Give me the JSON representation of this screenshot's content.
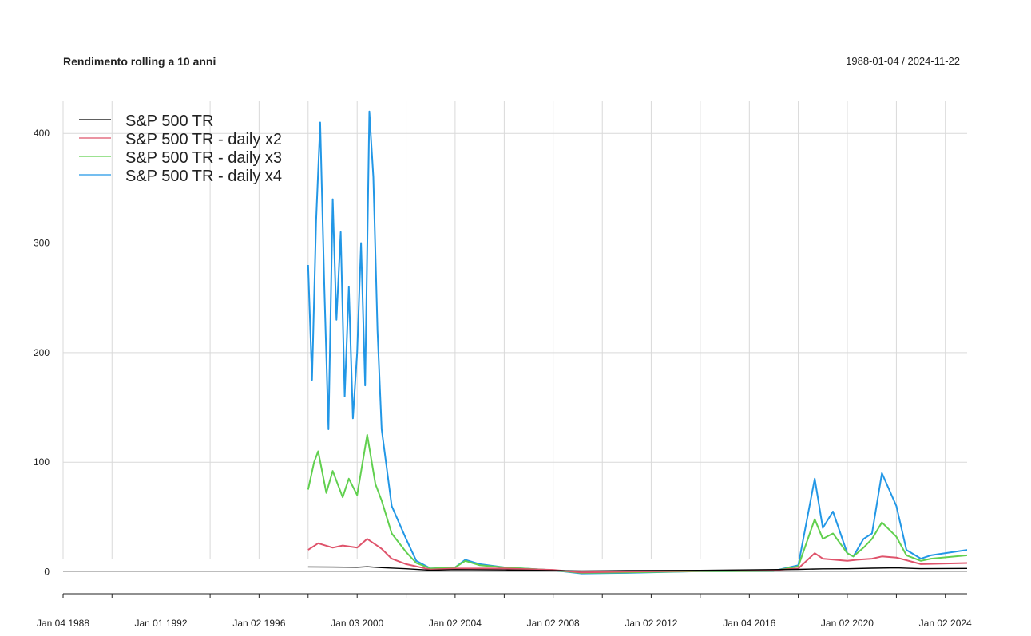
{
  "chart_data": {
    "type": "line",
    "title": "Rendimento rolling a 10 anni",
    "date_range": "1988-01-04 / 2024-11-22",
    "x_range": [
      "1988-01-04",
      "2024-11-22"
    ],
    "ylim": [
      -20,
      430
    ],
    "y_ticks": [
      0,
      100,
      200,
      300,
      400
    ],
    "y_tick_labels": [
      "0",
      "100",
      "200",
      "300",
      "400"
    ],
    "x_ticks": [
      "1988-01-04",
      "1990-01-02",
      "1992-01-01",
      "1994-01-03",
      "1996-01-02",
      "1998-01-02",
      "2000-01-03",
      "2002-01-02",
      "2004-01-02",
      "2006-01-03",
      "2008-01-02",
      "2010-01-04",
      "2012-01-02",
      "2014-01-02",
      "2016-01-04",
      "2018-01-02",
      "2020-01-02",
      "2022-01-03",
      "2024-01-02"
    ],
    "x_tick_labels": [
      "Jan 04 1988",
      "Jan 01 1992",
      "Jan 02 1996",
      "Jan 03 2000",
      "Jan 02 2004",
      "Jan 02 2008",
      "Jan 02 2012",
      "Jan 04 2016",
      "Jan 02 2020",
      "Jan 02 2024"
    ],
    "x_tick_label_dates": [
      "1988-01-04",
      "1992-01-01",
      "1996-01-02",
      "2000-01-03",
      "2004-01-02",
      "2008-01-02",
      "2012-01-02",
      "2016-01-04",
      "2020-01-02",
      "2024-01-02"
    ],
    "grid": true,
    "legend": "top-left",
    "series": [
      {
        "name": "S&P 500 TR",
        "color": "#000000",
        "x": [
          "1998-01-02",
          "1999-01-04",
          "2000-01-03",
          "2000-06-01",
          "2001-01-02",
          "2002-01-02",
          "2003-01-02",
          "2004-01-02",
          "2006-01-03",
          "2008-01-02",
          "2009-03-02",
          "2011-01-03",
          "2014-01-02",
          "2018-01-02",
          "2019-01-02",
          "2020-01-02",
          "2021-01-04",
          "2022-01-03",
          "2023-01-03",
          "2024-11-22"
        ],
        "y": [
          4.5,
          4.3,
          4.2,
          4.6,
          3.8,
          2.8,
          1.4,
          2.0,
          1.7,
          1.2,
          0.8,
          1.1,
          1.3,
          2.2,
          2.7,
          2.8,
          3.3,
          3.6,
          2.9,
          3.1
        ]
      },
      {
        "name": "S&P 500 TR - daily x2",
        "color": "#df536b",
        "x": [
          "1998-01-02",
          "1998-06-01",
          "1999-01-04",
          "1999-06-01",
          "2000-01-03",
          "2000-06-01",
          "2001-01-02",
          "2001-06-01",
          "2002-01-02",
          "2003-01-02",
          "2004-01-02",
          "2005-01-03",
          "2006-01-03",
          "2008-01-02",
          "2009-03-02",
          "2011-01-03",
          "2014-01-02",
          "2017-01-03",
          "2018-01-02",
          "2018-09-04",
          "2019-01-02",
          "2020-01-02",
          "2020-06-01",
          "2021-01-04",
          "2021-06-01",
          "2022-01-03",
          "2023-01-03",
          "2024-11-22"
        ],
        "y": [
          20,
          26,
          22,
          24,
          22,
          30,
          21,
          12,
          7,
          2,
          3,
          3,
          3,
          1.8,
          -0.5,
          0.2,
          1.0,
          1.5,
          3,
          17,
          12,
          10,
          11,
          12,
          14,
          13,
          7,
          8
        ]
      },
      {
        "name": "S&P 500 TR - daily x3",
        "color": "#61d04f",
        "x": [
          "1998-01-02",
          "1998-04-01",
          "1998-06-01",
          "1998-10-01",
          "1999-01-04",
          "1999-06-01",
          "1999-09-01",
          "2000-01-03",
          "2000-06-01",
          "2000-10-02",
          "2001-01-02",
          "2001-06-01",
          "2002-01-02",
          "2002-06-03",
          "2003-01-02",
          "2004-01-02",
          "2004-06-01",
          "2005-01-03",
          "2006-01-03",
          "2008-01-02",
          "2009-03-02",
          "2011-01-03",
          "2014-01-02",
          "2017-01-03",
          "2018-01-02",
          "2018-09-04",
          "2019-01-02",
          "2019-06-03",
          "2020-01-02",
          "2020-04-01",
          "2020-09-01",
          "2021-01-04",
          "2021-06-01",
          "2022-01-03",
          "2022-06-01",
          "2023-01-03",
          "2023-06-01",
          "2024-11-22"
        ],
        "y": [
          75,
          100,
          110,
          72,
          92,
          68,
          85,
          70,
          125,
          80,
          65,
          35,
          18,
          8,
          3,
          4,
          10,
          6,
          4,
          1.5,
          -1.0,
          -0.5,
          0.5,
          1.0,
          5,
          48,
          30,
          35,
          17,
          14,
          22,
          30,
          45,
          32,
          15,
          10,
          12,
          15
        ]
      },
      {
        "name": "S&P 500 TR - daily x4",
        "color": "#2297e6",
        "x": [
          "1998-01-02",
          "1998-03-02",
          "1998-05-01",
          "1998-07-01",
          "1998-09-01",
          "1998-11-02",
          "1999-01-04",
          "1999-03-01",
          "1999-05-03",
          "1999-07-01",
          "1999-09-01",
          "1999-11-01",
          "2000-01-03",
          "2000-03-01",
          "2000-05-01",
          "2000-07-03",
          "2000-09-01",
          "2000-11-01",
          "2001-01-02",
          "2001-06-01",
          "2002-01-02",
          "2002-06-03",
          "2003-01-02",
          "2004-01-02",
          "2004-06-01",
          "2005-01-03",
          "2006-01-03",
          "2008-01-02",
          "2009-03-02",
          "2011-01-03",
          "2014-01-02",
          "2017-01-03",
          "2018-01-02",
          "2018-09-04",
          "2019-01-02",
          "2019-06-03",
          "2020-01-02",
          "2020-04-01",
          "2020-09-01",
          "2021-01-04",
          "2021-06-01",
          "2022-01-03",
          "2022-06-01",
          "2023-01-03",
          "2023-06-01",
          "2024-11-22"
        ],
        "y": [
          280,
          175,
          320,
          410,
          260,
          130,
          340,
          230,
          310,
          160,
          260,
          140,
          200,
          300,
          170,
          420,
          360,
          220,
          130,
          60,
          30,
          10,
          3,
          4,
          11,
          7,
          4,
          1.5,
          -1.5,
          -1.0,
          0.5,
          1.0,
          6,
          85,
          40,
          55,
          17,
          14,
          30,
          35,
          90,
          60,
          20,
          12,
          15,
          20
        ]
      }
    ]
  }
}
